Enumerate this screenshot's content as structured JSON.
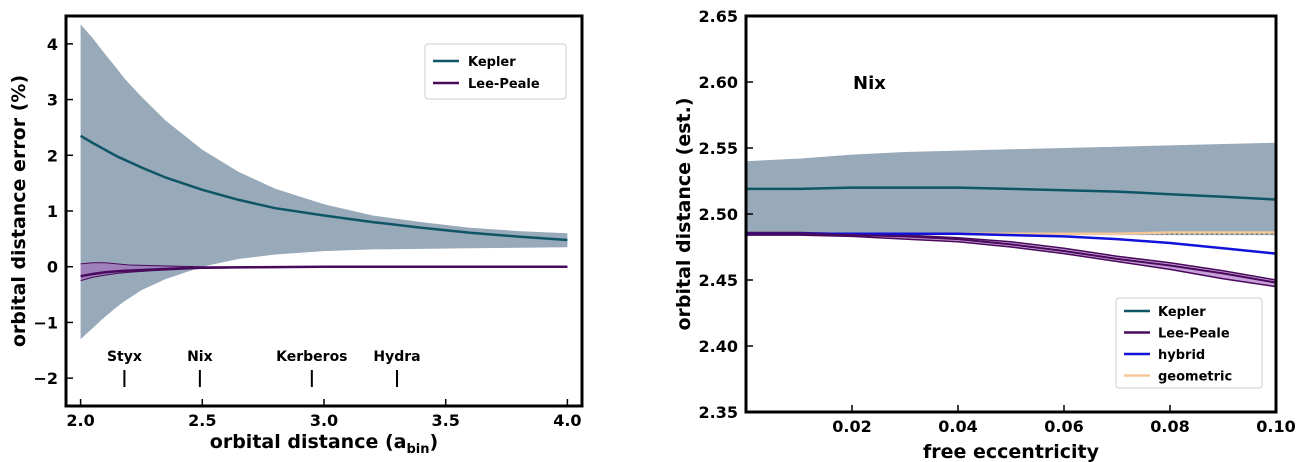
{
  "colors": {
    "kepler": "#0e5566",
    "lee_peale": "#4a0a5c",
    "hybrid": "#1212d8",
    "geometric": "#f6c899",
    "band": "#98a9ba",
    "lee_band": "#a45fbf",
    "axes": "#000000"
  },
  "chart_data": [
    {
      "type": "line",
      "xlabel_main": "orbital distance (a",
      "xlabel_sub": "bin",
      "xlabel_close": ")",
      "ylabel": "orbital distance error (%)",
      "xlim": [
        1.94,
        4.06
      ],
      "ylim": [
        -2.5,
        4.5
      ],
      "xticks": [
        2.0,
        2.5,
        3.0,
        3.5,
        4.0
      ],
      "xtick_labels": [
        "2.0",
        "2.5",
        "3.0",
        "3.5",
        "4.0"
      ],
      "yticks": [
        -2,
        -1,
        0,
        1,
        2,
        3,
        4
      ],
      "ytick_labels": [
        "−2",
        "−1",
        "0",
        "1",
        "2",
        "3",
        "4"
      ],
      "legend_position": "top-right",
      "series": [
        {
          "name": "Kepler",
          "x": [
            2.0,
            2.05,
            2.1,
            2.15,
            2.18,
            2.25,
            2.35,
            2.5,
            2.65,
            2.8,
            3.0,
            3.2,
            3.4,
            3.6,
            3.8,
            4.0
          ],
          "y": [
            2.35,
            2.22,
            2.1,
            1.98,
            1.92,
            1.78,
            1.6,
            1.38,
            1.2,
            1.05,
            0.92,
            0.8,
            0.7,
            0.61,
            0.54,
            0.48
          ],
          "band_upper": [
            4.35,
            4.1,
            3.82,
            3.55,
            3.38,
            3.05,
            2.62,
            2.1,
            1.7,
            1.4,
            1.12,
            0.92,
            0.8,
            0.7,
            0.64,
            0.6
          ],
          "band_lower": [
            -1.3,
            -1.1,
            -0.9,
            -0.72,
            -0.62,
            -0.42,
            -0.22,
            0.0,
            0.14,
            0.22,
            0.28,
            0.31,
            0.32,
            0.33,
            0.34,
            0.35
          ]
        },
        {
          "name": "Lee-Peale",
          "x": [
            2.0,
            2.05,
            2.1,
            2.15,
            2.2,
            2.3,
            2.4,
            2.5,
            2.7,
            3.0,
            3.5,
            4.0
          ],
          "y": [
            -0.17,
            -0.13,
            -0.1,
            -0.08,
            -0.07,
            -0.05,
            -0.03,
            -0.02,
            -0.01,
            0.0,
            0.0,
            0.0
          ],
          "band_upper": [
            0.05,
            0.07,
            0.07,
            0.05,
            0.03,
            0.02,
            0.01,
            0.0,
            0.0,
            0.0,
            0.0,
            0.0
          ],
          "band_lower": [
            -0.25,
            -0.19,
            -0.15,
            -0.12,
            -0.1,
            -0.07,
            -0.05,
            -0.03,
            -0.02,
            -0.01,
            -0.01,
            0.0
          ]
        }
      ],
      "moons": [
        {
          "name": "Styx",
          "x": 2.18
        },
        {
          "name": "Nix",
          "x": 2.49
        },
        {
          "name": "Kerberos",
          "x": 2.95
        },
        {
          "name": "Hydra",
          "x": 3.3
        }
      ]
    },
    {
      "type": "line",
      "xlabel": "free eccentricity",
      "ylabel": "orbital distance (est.)",
      "annotation": "Nix",
      "xlim": [
        0.0,
        0.1
      ],
      "ylim": [
        2.35,
        2.65
      ],
      "xticks": [
        0.02,
        0.04,
        0.06,
        0.08,
        0.1
      ],
      "xtick_labels": [
        "0.02",
        "0.04",
        "0.06",
        "0.08",
        "0.10"
      ],
      "yticks": [
        2.35,
        2.4,
        2.45,
        2.5,
        2.55,
        2.6,
        2.65
      ],
      "ytick_labels": [
        "2.35",
        "2.40",
        "2.45",
        "2.50",
        "2.55",
        "2.60",
        "2.65"
      ],
      "legend_position": "bottom-right",
      "series": [
        {
          "name": "Kepler",
          "x": [
            0.0,
            0.01,
            0.02,
            0.03,
            0.04,
            0.05,
            0.06,
            0.07,
            0.08,
            0.09,
            0.1
          ],
          "y": [
            2.519,
            2.519,
            2.52,
            2.52,
            2.52,
            2.519,
            2.518,
            2.517,
            2.515,
            2.513,
            2.511
          ],
          "band_upper": [
            2.54,
            2.542,
            2.545,
            2.547,
            2.548,
            2.549,
            2.55,
            2.551,
            2.552,
            2.553,
            2.554
          ],
          "band_lower": [
            2.484,
            2.484,
            2.484,
            2.484,
            2.484,
            2.484,
            2.484,
            2.484,
            2.484,
            2.484,
            2.484
          ]
        },
        {
          "name": "Lee-Peale",
          "x": [
            0.0,
            0.01,
            0.02,
            0.03,
            0.04,
            0.05,
            0.06,
            0.07,
            0.08,
            0.09,
            0.1
          ],
          "y": [
            2.485,
            2.485,
            2.484,
            2.483,
            2.481,
            2.477,
            2.472,
            2.466,
            2.461,
            2.455,
            2.448
          ],
          "band_upper": [
            2.486,
            2.486,
            2.485,
            2.484,
            2.482,
            2.479,
            2.474,
            2.468,
            2.463,
            2.457,
            2.45
          ],
          "band_lower": [
            2.484,
            2.484,
            2.483,
            2.481,
            2.479,
            2.475,
            2.47,
            2.464,
            2.458,
            2.451,
            2.445
          ]
        },
        {
          "name": "hybrid",
          "x": [
            0.0,
            0.01,
            0.02,
            0.03,
            0.04,
            0.05,
            0.06,
            0.07,
            0.08,
            0.09,
            0.1
          ],
          "y": [
            2.485,
            2.485,
            2.485,
            2.485,
            2.485,
            2.484,
            2.483,
            2.481,
            2.478,
            2.474,
            2.47
          ]
        },
        {
          "name": "geometric",
          "x": [
            0.0,
            0.01,
            0.02,
            0.03,
            0.04,
            0.05,
            0.06,
            0.07,
            0.08,
            0.09,
            0.1
          ],
          "y": [
            2.485,
            2.485,
            2.485,
            2.485,
            2.485,
            2.485,
            2.485,
            2.485,
            2.486,
            2.486,
            2.486
          ]
        }
      ]
    }
  ]
}
